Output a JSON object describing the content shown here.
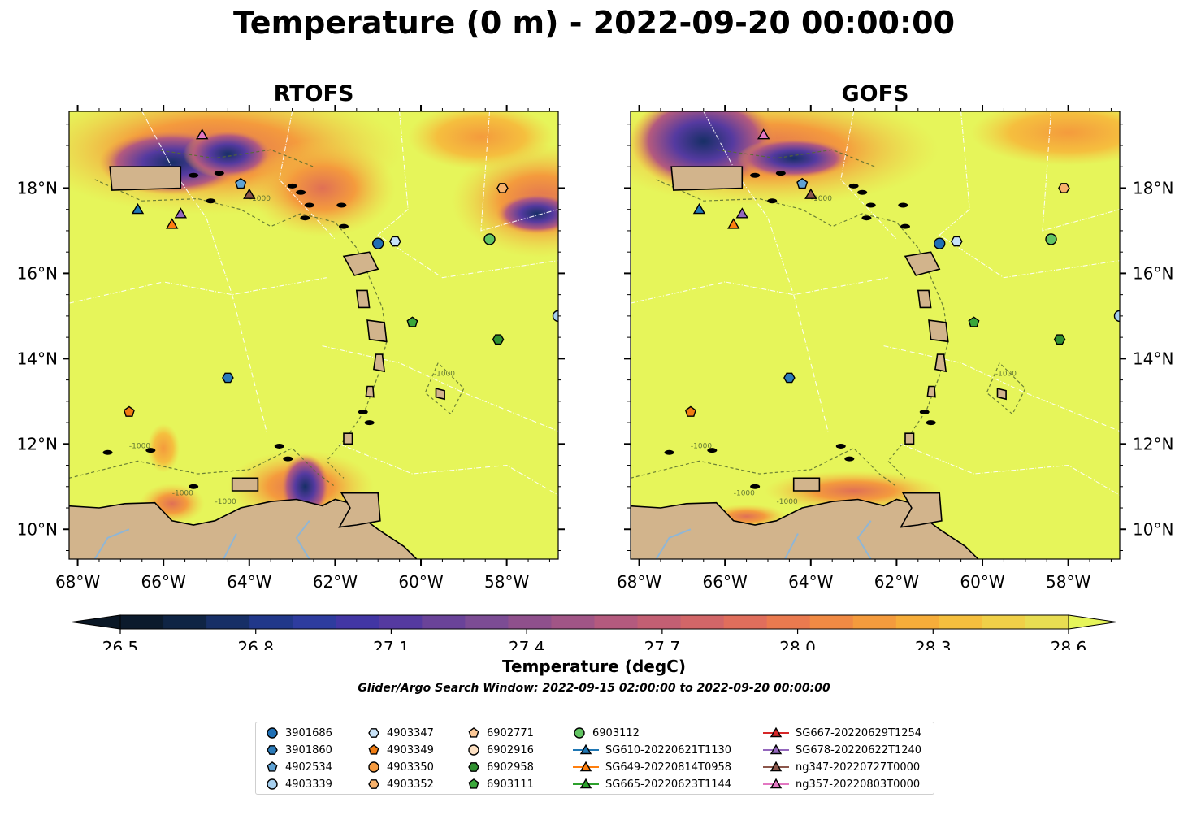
{
  "title": "Temperature (0 m) - 2022-09-20 00:00:00",
  "panels": [
    {
      "title": "RTOFS",
      "side": "left"
    },
    {
      "title": "GOFS",
      "side": "right"
    }
  ],
  "axes": {
    "lon_ticks": [
      "68°W",
      "66°W",
      "64°W",
      "62°W",
      "60°W",
      "58°W"
    ],
    "lat_ticks": [
      "18°N",
      "16°N",
      "14°N",
      "12°N",
      "10°N"
    ],
    "lon_range": [
      -68.2,
      -56.8
    ],
    "lat_range": [
      9.3,
      19.8
    ]
  },
  "bathymetry_label": "-1000",
  "colorbar": {
    "label": "Temperature (degC)",
    "ticks": [
      "26.5",
      "26.8",
      "27.1",
      "27.4",
      "27.7",
      "28.0",
      "28.3",
      "28.6"
    ],
    "range": [
      26.5,
      28.6
    ],
    "extend": "both",
    "colors": [
      "#0b1a2c",
      "#0f2444",
      "#172f66",
      "#21388a",
      "#2e3c9f",
      "#4236a4",
      "#553aa0",
      "#6a4399",
      "#7c4c94",
      "#8f508c",
      "#a15586",
      "#b45a7e",
      "#c35f73",
      "#d26668",
      "#e06e5c",
      "#ea7a4f",
      "#f08a44",
      "#f49b3d",
      "#f6ad3a",
      "#f5bf3e",
      "#f0d048",
      "#e8dd52"
    ],
    "over_color": "#e6f55a",
    "under_color": "#0a1725"
  },
  "search_window": "Glider/Argo Search Window: 2022-09-15 02:00:00 to 2022-09-20 00:00:00",
  "legend": {
    "columns": [
      [
        {
          "label": "3901686",
          "marker": "circle",
          "color": "#1f6fb4"
        },
        {
          "label": "3901860",
          "marker": "hexagon",
          "color": "#2b7bba"
        },
        {
          "label": "4902534",
          "marker": "pentagon",
          "color": "#5fa2d4"
        },
        {
          "label": "4903339",
          "marker": "circle",
          "color": "#a6cfee"
        }
      ],
      [
        {
          "label": "4903347",
          "marker": "hexagon",
          "color": "#c8e2f7"
        },
        {
          "label": "4903349",
          "marker": "pentagon",
          "color": "#f07c12"
        },
        {
          "label": "4903350",
          "marker": "circle",
          "color": "#f59a3f"
        },
        {
          "label": "4903352",
          "marker": "hexagon",
          "color": "#f8b26b"
        }
      ],
      [
        {
          "label": "6902771",
          "marker": "pentagon",
          "color": "#fcc896"
        },
        {
          "label": "6902916",
          "marker": "circle",
          "color": "#fde0c2"
        },
        {
          "label": "6902958",
          "marker": "hexagon",
          "color": "#2f8f2f"
        },
        {
          "label": "6903111",
          "marker": "pentagon",
          "color": "#3aa83a"
        }
      ],
      [
        {
          "label": "6903112",
          "marker": "circle",
          "color": "#62c462"
        },
        {
          "label": "SG610-20220621T1130",
          "marker": "triangle",
          "color": "#1f77b4",
          "line": true
        },
        {
          "label": "SG649-20220814T0958",
          "marker": "triangle",
          "color": "#ff7f0e",
          "line": true
        },
        {
          "label": "SG665-20220623T1144",
          "marker": "triangle",
          "color": "#2ca02c",
          "line": true
        }
      ],
      [
        {
          "label": "SG667-20220629T1254",
          "marker": "triangle",
          "color": "#d62728",
          "line": true
        },
        {
          "label": "SG678-20220622T1240",
          "marker": "triangle",
          "color": "#9467bd",
          "line": true
        },
        {
          "label": "ng347-20220727T0000",
          "marker": "triangle",
          "color": "#8c564b",
          "line": true
        },
        {
          "label": "ng357-20220803T0000",
          "marker": "triangle",
          "color": "#e377c2",
          "line": true
        }
      ]
    ]
  },
  "observations": [
    {
      "id": "3901686",
      "lon": -61.0,
      "lat": 16.7,
      "marker": "circle",
      "color": "#1f6fb4"
    },
    {
      "id": "4903347",
      "lon": -60.6,
      "lat": 16.75,
      "marker": "hexagon",
      "color": "#c8e2f7"
    },
    {
      "id": "6903112",
      "lon": -58.4,
      "lat": 16.8,
      "marker": "circle",
      "color": "#62c462"
    },
    {
      "id": "4903352",
      "lon": -58.1,
      "lat": 18.0,
      "marker": "hexagon",
      "color": "#f8b26b"
    },
    {
      "id": "4902534",
      "lon": -64.2,
      "lat": 18.1,
      "marker": "pentagon",
      "color": "#5fa2d4"
    },
    {
      "id": "6903111",
      "lon": -60.2,
      "lat": 14.85,
      "marker": "pentagon",
      "color": "#3aa83a"
    },
    {
      "id": "6902958",
      "lon": -58.2,
      "lat": 14.45,
      "marker": "hexagon",
      "color": "#2f8f2f"
    },
    {
      "id": "4903339",
      "lon": -56.8,
      "lat": 15.0,
      "marker": "circle",
      "color": "#a6cfee"
    },
    {
      "id": "3901860",
      "lon": -64.5,
      "lat": 13.55,
      "marker": "hexagon",
      "color": "#2b7bba"
    },
    {
      "id": "4903349",
      "lon": -66.8,
      "lat": 12.75,
      "marker": "pentagon",
      "color": "#f07c12"
    },
    {
      "id": "SG610-20220621T1130",
      "lon": -66.6,
      "lat": 17.5,
      "marker": "triangle",
      "color": "#1f77b4"
    },
    {
      "id": "SG649-20220814T0958",
      "lon": -65.8,
      "lat": 17.15,
      "marker": "triangle",
      "color": "#ff7f0e"
    },
    {
      "id": "SG678-20220622T1240",
      "lon": -65.6,
      "lat": 17.4,
      "marker": "triangle",
      "color": "#9467bd"
    },
    {
      "id": "ng347-20220727T0000",
      "lon": -64.0,
      "lat": 17.85,
      "marker": "triangle",
      "color": "#8c564b"
    },
    {
      "id": "ng357-20220803T0000",
      "lon": -65.1,
      "lat": 19.25,
      "marker": "triangle",
      "color": "#e377c2"
    }
  ],
  "colors": {
    "land": "#d2b48c",
    "ocean_warm": "#e6f55a",
    "river": "#8fb6d6",
    "eez_line": "#ffffff",
    "bathy_contour": "#556b2f"
  }
}
